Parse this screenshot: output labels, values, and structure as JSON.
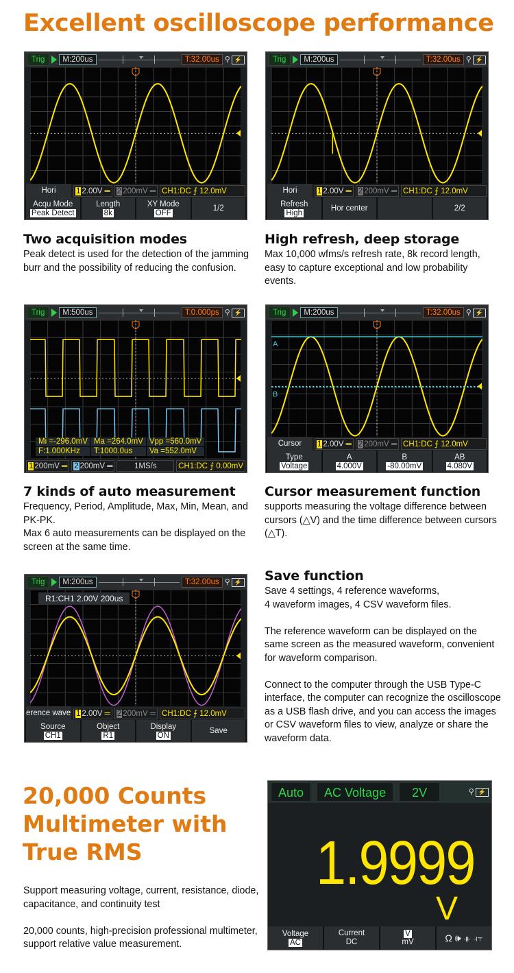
{
  "title": "Excellent oscilloscope performance",
  "colors": {
    "accent": "#e07a12",
    "ch1": "#ffe600",
    "ch2": "#7fc6ee",
    "ref": "#c060d0",
    "cursor": "#40d0e0",
    "green": "#2fd24a"
  },
  "features": [
    {
      "heading": "Two acquisition  modes",
      "body": "Peak detect is used for the detection of the jamming burr and the possibility of reducing the confusion."
    },
    {
      "heading": "High refresh, deep storage",
      "body": "Max 10,000 wfms/s refresh rate, 8k record length, easy to capture exceptional and low probability events."
    },
    {
      "heading": "7 kinds of auto measurement",
      "body": "Frequency, Period, Amplitude, Max, Min, Mean, and PK-PK.\nMax 6 auto measurements can be displayed on the screen at the same time."
    },
    {
      "heading": "Cursor measurement function",
      "body": " supports measuring the voltage difference between cursors (△V) and the time difference between cursors (△T)."
    },
    {
      "heading": "Save function",
      "body": "Save 4 settings, 4 reference waveforms,\n4 waveform images, 4 CSV waveform files.\n\nThe reference waveform can be displayed on the same screen as the measured waveform, convenient for waveform comparison.\n\nConnect to the computer through the USB Type-C interface, the computer can recognize the oscilloscope as a USB flash drive, and you can access the images or CSV waveform files to view, analyze or share the waveform data."
    }
  ],
  "scopes": [
    {
      "trig": "Trig",
      "timebase": "M:200us",
      "trigtime": "T:32.00us",
      "mode": "Hori",
      "ch1": "2.00V",
      "ch2": "200mV",
      "chinfo": "CH1:DC ⨍ 12.0mV",
      "menu": [
        {
          "label": "Acqu Mode",
          "value": "Peak Detect"
        },
        {
          "label": "Length",
          "value": "8k"
        },
        {
          "label": "XY Mode",
          "value": "OFF"
        },
        {
          "label": "1/2",
          "value": ""
        }
      ]
    },
    {
      "trig": "Trig",
      "timebase": "M:200us",
      "trigtime": "T:32.00us",
      "mode": "Hori",
      "ch1": "2.00V",
      "ch2": "200mV",
      "chinfo": "CH1:DC ⨍ 12.0mV",
      "menu": [
        {
          "label": "Refresh",
          "value": "High"
        },
        {
          "label": "Hor center",
          "value": ""
        },
        {
          "label": "",
          "value": ""
        },
        {
          "label": "2/2",
          "value": ""
        }
      ]
    },
    {
      "trig": "Trig",
      "timebase": "M:500us",
      "trigtime": "T:0.000ps",
      "ch1": "200mV",
      "ch2": "200mV",
      "rate": "1MS/s",
      "chinfo": "CH1:DC ⨍ 0.00mV",
      "measurements": [
        "Mi =-296.0mV",
        "Ma =264.0mV",
        "Vpp =560.0mV",
        "F:1.000KHz",
        "T:1000.0us",
        "Va =552.0mV"
      ]
    },
    {
      "trig": "Trig",
      "timebase": "M:200us",
      "trigtime": "T:32.00us",
      "mode": "Cursor",
      "ch1": "2.00V",
      "ch2": "200mV",
      "chinfo": "CH1:DC ⨍ 12.0mV",
      "cursorA": "A",
      "cursorB": "B",
      "menu": [
        {
          "label": "Type",
          "value": "Voltage"
        },
        {
          "label": "A",
          "value": "4.000V"
        },
        {
          "label": "B",
          "value": "-80.00mV"
        },
        {
          "label": "AB",
          "value": "4.080V"
        }
      ]
    },
    {
      "trig": "Trig",
      "timebase": "M:200us",
      "trigtime": "T:32.00us",
      "mode": "erence wavefo",
      "ch1": "2.00V",
      "ch2": "200mV",
      "chinfo": "CH1:DC ⨍ 12.0mV",
      "refinfo": "R1:CH1 2.00V 200us",
      "menu": [
        {
          "label": "Source",
          "value": "CH1"
        },
        {
          "label": "Object",
          "value": "R1"
        },
        {
          "label": "Display",
          "value": "ON"
        },
        {
          "label": "Save",
          "value": ""
        }
      ]
    }
  ],
  "multimeter": {
    "heading": "20,000 Counts\nMultimeter with\nTrue RMS",
    "body": "Support measuring voltage, current, resistance, diode, capacitance, and continuity test\n\n20,000 counts, high-precision professional multimeter, support relative value measurement.",
    "range_mode": "Auto",
    "function": "AC Voltage",
    "range": "2V",
    "reading": "1.9999",
    "unit": "V",
    "menu": [
      {
        "label": "Voltage",
        "value": "AC"
      },
      {
        "label": "Current",
        "value": "DC"
      },
      {
        "label": "V",
        "value": "mV"
      }
    ],
    "icons": "Ω 🕪 ⧺ ⫞⫟"
  }
}
